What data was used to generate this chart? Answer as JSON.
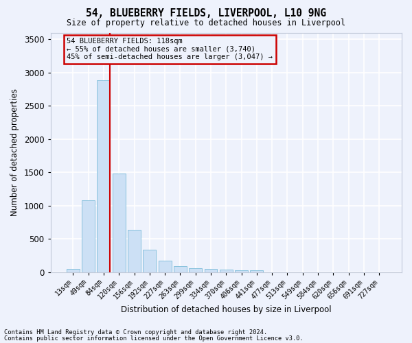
{
  "title1": "54, BLUEBERRY FIELDS, LIVERPOOL, L10 9NG",
  "title2": "Size of property relative to detached houses in Liverpool",
  "xlabel": "Distribution of detached houses by size in Liverpool",
  "ylabel": "Number of detached properties",
  "categories": [
    "13sqm",
    "49sqm",
    "84sqm",
    "120sqm",
    "156sqm",
    "192sqm",
    "227sqm",
    "263sqm",
    "299sqm",
    "334sqm",
    "370sqm",
    "406sqm",
    "441sqm",
    "477sqm",
    "513sqm",
    "549sqm",
    "584sqm",
    "620sqm",
    "656sqm",
    "691sqm",
    "727sqm"
  ],
  "bar_heights": [
    50,
    1080,
    2880,
    1480,
    630,
    340,
    170,
    90,
    60,
    45,
    35,
    25,
    30,
    0,
    0,
    0,
    0,
    0,
    0,
    0,
    0
  ],
  "bar_color": "#cce0f5",
  "bar_edge_color": "#7bbbd8",
  "vline_index": 2,
  "vline_color": "#cc0000",
  "ylim": [
    0,
    3600
  ],
  "yticks": [
    0,
    500,
    1000,
    1500,
    2000,
    2500,
    3000,
    3500
  ],
  "annotation_title": "54 BLUEBERRY FIELDS: 118sqm",
  "annotation_line1": "← 55% of detached houses are smaller (3,740)",
  "annotation_line2": "45% of semi-detached houses are larger (3,047) →",
  "annotation_box_color": "#cc0000",
  "footnote1": "Contains HM Land Registry data © Crown copyright and database right 2024.",
  "footnote2": "Contains public sector information licensed under the Open Government Licence v3.0.",
  "bg_color": "#eef2fc",
  "grid_color": "#ffffff"
}
